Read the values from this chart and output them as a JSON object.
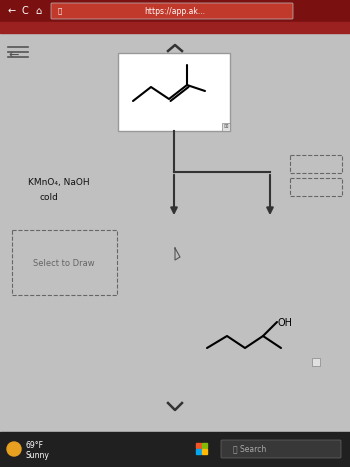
{
  "bg_color": "#b8b8b8",
  "browser_bar_color": "#7a1010",
  "content_bg": "#c0c0c0",
  "white_box_color": "#ffffff",
  "box_border_color": "#999999",
  "dashed_border_color": "#666666",
  "arrow_color": "#222222",
  "text_color": "#111111",
  "reaction_conditions": "KMnO₄, NaOH",
  "reaction_conditions2": "cold",
  "select_to_draw": "Select to Draw",
  "cond_font_size": 6.5,
  "label_font_size": 6,
  "weather_text_1": "69°F",
  "weather_text_2": "Sunny",
  "search_text": "Search",
  "url_text": "https://app.ak...",
  "taskbar_color": "#202020",
  "taskbar_search_color": "#383838",
  "sun_color": "#e8a020"
}
